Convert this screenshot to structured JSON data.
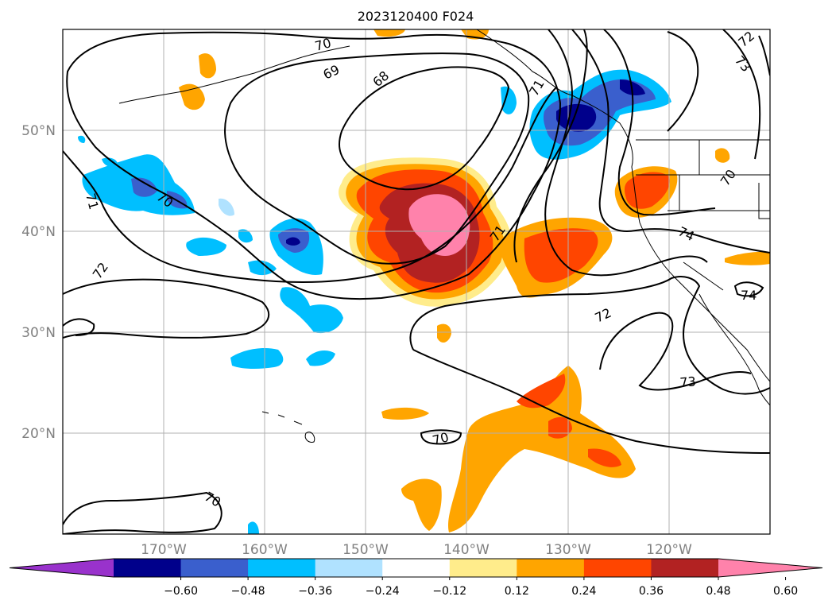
{
  "title": "2023120400 F024",
  "map": {
    "lat_ticks": [
      {
        "value": 50,
        "label": "50°N"
      },
      {
        "value": 40,
        "label": "40°N"
      },
      {
        "value": 30,
        "label": "30°N"
      },
      {
        "value": 20,
        "label": "20°N"
      }
    ],
    "lon_ticks": [
      {
        "value": -170,
        "label": "170°W"
      },
      {
        "value": -160,
        "label": "160°W"
      },
      {
        "value": -150,
        "label": "150°W"
      },
      {
        "value": -140,
        "label": "140°W"
      },
      {
        "value": -130,
        "label": "130°W"
      },
      {
        "value": -120,
        "label": "120°W"
      }
    ],
    "lon_range": [
      -180,
      -110
    ],
    "lat_range": [
      10,
      60
    ],
    "contour_labels": [
      "70",
      "73",
      "69",
      "68",
      "71",
      "70",
      "71",
      "72",
      "71",
      "74",
      "72",
      "74",
      "73",
      "70",
      "70",
      "70",
      "72"
    ]
  },
  "colorbar": {
    "ticks": [
      "−0.60",
      "−0.48",
      "−0.36",
      "−0.24",
      "−0.12",
      "0.12",
      "0.24",
      "0.36",
      "0.48",
      "0.60"
    ],
    "colors": [
      "#9932cc",
      "#00008b",
      "#3a5fcd",
      "#00bfff",
      "#b0e2ff",
      "#ffffff",
      "#ffec8b",
      "#ffa500",
      "#ff4500",
      "#b22222",
      "#ff82ab"
    ]
  }
}
